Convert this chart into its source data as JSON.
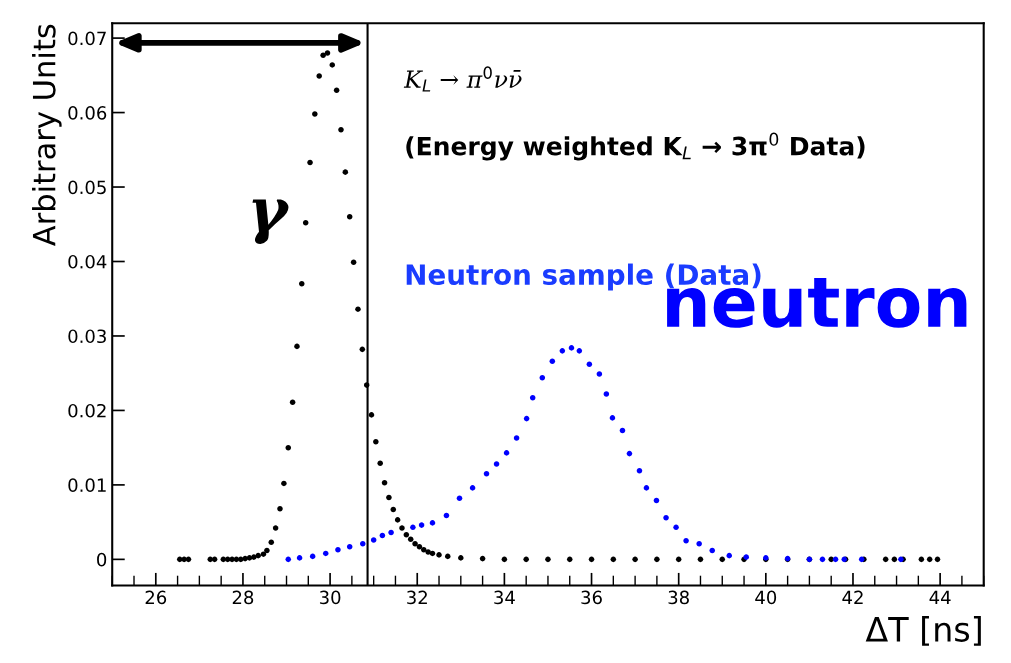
{
  "chart_data": {
    "type": "scatter",
    "xlabel": "ΔT [ns]",
    "ylabel": "Arbitrary Units",
    "xlim": [
      25,
      45
    ],
    "ylim": [
      -0.0035,
      0.072
    ],
    "xticks": [
      26,
      28,
      30,
      32,
      34,
      36,
      38,
      40,
      42,
      44
    ],
    "yticks": [
      0,
      0.01,
      0.02,
      0.03,
      0.04,
      0.05,
      0.06,
      0.07
    ],
    "grid": false,
    "legend": false,
    "marker": "circle",
    "annotations": [
      "K$_{L}$ → π$^{0}$νν̄",
      "(Energy weighted K$_{L}$ → 3π$^{0}$ Data)",
      "Neutron sample (Data)"
    ],
    "ref_lines": [
      {
        "axis": "x",
        "value": 30.86,
        "color": "#000000",
        "line_style": "solid"
      }
    ],
    "series": [
      {
        "name": "γ",
        "color": "#000000",
        "x": [
          26.55,
          26.65,
          26.75,
          27.25,
          27.35,
          27.55,
          27.65,
          27.75,
          27.85,
          27.95,
          28.05,
          28.15,
          28.25,
          28.35,
          28.47,
          28.55,
          28.65,
          28.75,
          28.85,
          28.94,
          29.04,
          29.14,
          29.24,
          29.35,
          29.44,
          29.54,
          29.65,
          29.75,
          29.84,
          29.94,
          30.05,
          30.15,
          30.25,
          30.35,
          30.45,
          30.54,
          30.64,
          30.74,
          30.84,
          30.95,
          31.05,
          31.15,
          31.25,
          31.35,
          31.45,
          31.55,
          31.65,
          31.75,
          31.85,
          31.95,
          32.05,
          32.15,
          32.25,
          32.35,
          32.5,
          32.7,
          33.0,
          33.5,
          34.0,
          34.5,
          35.0,
          35.5,
          36.0,
          36.5,
          37.0,
          37.5,
          38.0,
          38.5,
          39.0,
          39.5,
          40.0,
          40.5,
          41.0,
          41.5,
          41.83,
          42.25,
          42.75,
          42.95,
          43.15,
          43.57,
          43.76,
          43.94
        ],
        "values": [
          0,
          0,
          0,
          0,
          0,
          0,
          0,
          0,
          0,
          0,
          0.0001,
          0.0002,
          0.0003,
          0.0005,
          0.0007,
          0.0012,
          0.0023,
          0.0042,
          0.0068,
          0.0102,
          0.015,
          0.0211,
          0.0286,
          0.037,
          0.0452,
          0.0533,
          0.0598,
          0.0649,
          0.0677,
          0.068,
          0.0664,
          0.063,
          0.0577,
          0.052,
          0.046,
          0.0399,
          0.0336,
          0.0282,
          0.0234,
          0.0194,
          0.0158,
          0.0129,
          0.0103,
          0.0083,
          0.0067,
          0.0053,
          0.0042,
          0.0033,
          0.0027,
          0.0021,
          0.0017,
          0.0013,
          0.001,
          0.0008,
          0.0006,
          0.0004,
          0.0002,
          0.0001,
          0,
          0,
          0,
          0,
          0,
          0,
          0,
          0,
          0,
          0,
          0,
          0,
          0,
          0,
          0,
          0,
          0,
          0,
          0,
          0,
          0,
          0,
          0,
          0
        ]
      },
      {
        "name": "neutron",
        "color": "#0000ff",
        "x": [
          29.04,
          29.3,
          29.6,
          29.9,
          30.18,
          30.45,
          30.75,
          31.0,
          31.2,
          31.4,
          31.9,
          32.1,
          32.35,
          32.67,
          32.97,
          33.27,
          33.59,
          33.82,
          34.05,
          34.28,
          34.51,
          34.65,
          34.87,
          35.1,
          35.33,
          35.54,
          35.72,
          35.95,
          36.18,
          36.34,
          36.48,
          36.71,
          36.87,
          37.1,
          37.26,
          37.49,
          37.71,
          37.94,
          38.17,
          38.47,
          38.77,
          39.16,
          39.55,
          40.0,
          40.5,
          41.0,
          41.3,
          41.6,
          41.8,
          42.2,
          43.1
        ],
        "values": [
          0,
          0.0002,
          0.0004,
          0.0008,
          0.0013,
          0.0017,
          0.0021,
          0.0026,
          0.0032,
          0.0036,
          0.0043,
          0.0046,
          0.0049,
          0.0059,
          0.0082,
          0.0096,
          0.0115,
          0.0128,
          0.0143,
          0.0163,
          0.0189,
          0.0217,
          0.0244,
          0.0266,
          0.028,
          0.0284,
          0.028,
          0.0262,
          0.0249,
          0.0222,
          0.019,
          0.0173,
          0.0142,
          0.0119,
          0.0096,
          0.0079,
          0.0056,
          0.0043,
          0.0025,
          0.0021,
          0.0012,
          0.0005,
          0.0003,
          0.0002,
          0.0001,
          0,
          0,
          0,
          0,
          0,
          0
        ]
      }
    ]
  }
}
